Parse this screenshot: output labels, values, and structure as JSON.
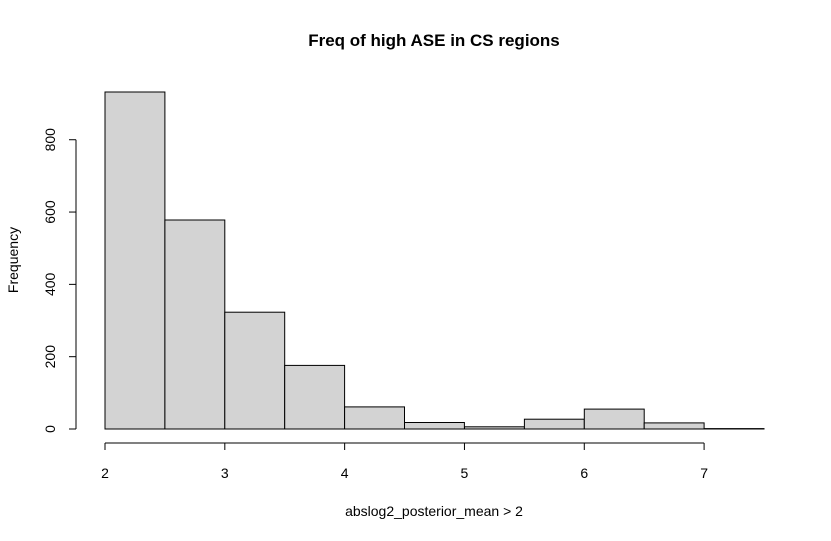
{
  "chart_data": {
    "type": "bar",
    "title": "Freq of high ASE in CS regions",
    "xlabel": "abslog2_posterior_mean > 2",
    "ylabel": "Frequency",
    "bins": [
      {
        "start": 2.0,
        "end": 2.5,
        "count": 932
      },
      {
        "start": 2.5,
        "end": 3.0,
        "count": 578
      },
      {
        "start": 3.0,
        "end": 3.5,
        "count": 323
      },
      {
        "start": 3.5,
        "end": 4.0,
        "count": 176
      },
      {
        "start": 4.0,
        "end": 4.5,
        "count": 61
      },
      {
        "start": 4.5,
        "end": 5.0,
        "count": 18
      },
      {
        "start": 5.0,
        "end": 5.5,
        "count": 6
      },
      {
        "start": 5.5,
        "end": 6.0,
        "count": 27
      },
      {
        "start": 6.0,
        "end": 6.5,
        "count": 55
      },
      {
        "start": 6.5,
        "end": 7.0,
        "count": 17
      },
      {
        "start": 7.0,
        "end": 7.5,
        "count": 1
      }
    ],
    "xlim": [
      2,
      7.5
    ],
    "ylim": [
      0,
      932
    ],
    "x_ticks": [
      "2",
      "3",
      "4",
      "5",
      "6",
      "7"
    ],
    "y_ticks": [
      "0",
      "200",
      "400",
      "600",
      "800"
    ],
    "bar_color": "#d3d3d3",
    "grid": false,
    "legend": "none"
  }
}
